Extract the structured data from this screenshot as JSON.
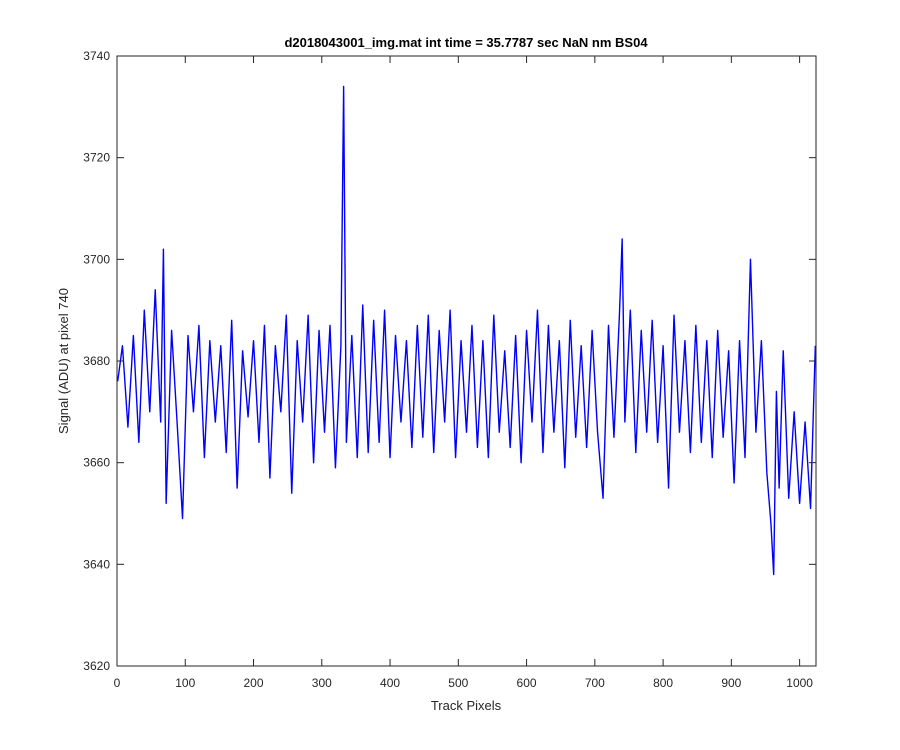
{
  "chart_data": {
    "type": "line",
    "title": "d2018043001_img.mat int time = 35.7787 sec  NaN nm BS04",
    "xlabel": "Track Pixels",
    "ylabel": "Signal (ADU) at pixel 740",
    "xlim": [
      0,
      1024
    ],
    "ylim": [
      3620,
      3740
    ],
    "xticks": [
      0,
      100,
      200,
      300,
      400,
      500,
      600,
      700,
      800,
      900,
      1000
    ],
    "yticks": [
      3620,
      3640,
      3660,
      3680,
      3700,
      3720,
      3740
    ],
    "grid": false,
    "legend": "none",
    "series": [
      {
        "color": "#0000ff",
        "sampling": "approximate trace read off the plot, one point every 8 track pixels",
        "x": [
          1,
          8,
          16,
          24,
          32,
          40,
          48,
          56,
          64,
          68,
          72,
          80,
          88,
          96,
          104,
          112,
          120,
          128,
          136,
          144,
          152,
          160,
          168,
          176,
          184,
          192,
          200,
          208,
          216,
          224,
          232,
          240,
          248,
          256,
          264,
          272,
          280,
          288,
          296,
          304,
          312,
          320,
          328,
          332,
          336,
          344,
          352,
          360,
          368,
          376,
          384,
          392,
          400,
          408,
          416,
          424,
          432,
          440,
          448,
          456,
          464,
          472,
          480,
          488,
          496,
          504,
          512,
          520,
          528,
          536,
          544,
          552,
          560,
          568,
          576,
          584,
          592,
          600,
          608,
          616,
          624,
          632,
          640,
          648,
          656,
          664,
          672,
          680,
          688,
          696,
          704,
          712,
          720,
          728,
          736,
          740,
          744,
          752,
          760,
          768,
          776,
          784,
          792,
          800,
          808,
          816,
          824,
          832,
          840,
          848,
          856,
          864,
          872,
          880,
          888,
          896,
          904,
          912,
          920,
          928,
          936,
          944,
          952,
          958,
          962,
          966,
          970,
          976,
          984,
          992,
          1000,
          1008,
          1016,
          1023
        ],
        "y": [
          3676,
          3683,
          3667,
          3685,
          3664,
          3690,
          3670,
          3694,
          3668,
          3702,
          3652,
          3686,
          3668,
          3649,
          3685,
          3670,
          3687,
          3661,
          3684,
          3668,
          3683,
          3662,
          3688,
          3655,
          3682,
          3669,
          3684,
          3664,
          3687,
          3657,
          3683,
          3670,
          3689,
          3654,
          3684,
          3668,
          3689,
          3660,
          3686,
          3666,
          3687,
          3659,
          3683,
          3734,
          3664,
          3685,
          3661,
          3691,
          3662,
          3688,
          3664,
          3690,
          3661,
          3685,
          3668,
          3684,
          3663,
          3687,
          3665,
          3689,
          3662,
          3686,
          3668,
          3690,
          3661,
          3684,
          3666,
          3687,
          3663,
          3684,
          3661,
          3689,
          3666,
          3682,
          3663,
          3685,
          3660,
          3686,
          3668,
          3690,
          3662,
          3687,
          3666,
          3684,
          3659,
          3688,
          3665,
          3683,
          3663,
          3686,
          3666,
          3653,
          3687,
          3665,
          3689,
          3704,
          3668,
          3690,
          3662,
          3686,
          3666,
          3688,
          3664,
          3683,
          3655,
          3689,
          3666,
          3684,
          3662,
          3687,
          3664,
          3684,
          3661,
          3686,
          3665,
          3682,
          3656,
          3684,
          3661,
          3700,
          3666,
          3684,
          3658,
          3648,
          3638,
          3674,
          3655,
          3682,
          3653,
          3670,
          3652,
          3668,
          3651,
          3683
        ]
      }
    ]
  }
}
